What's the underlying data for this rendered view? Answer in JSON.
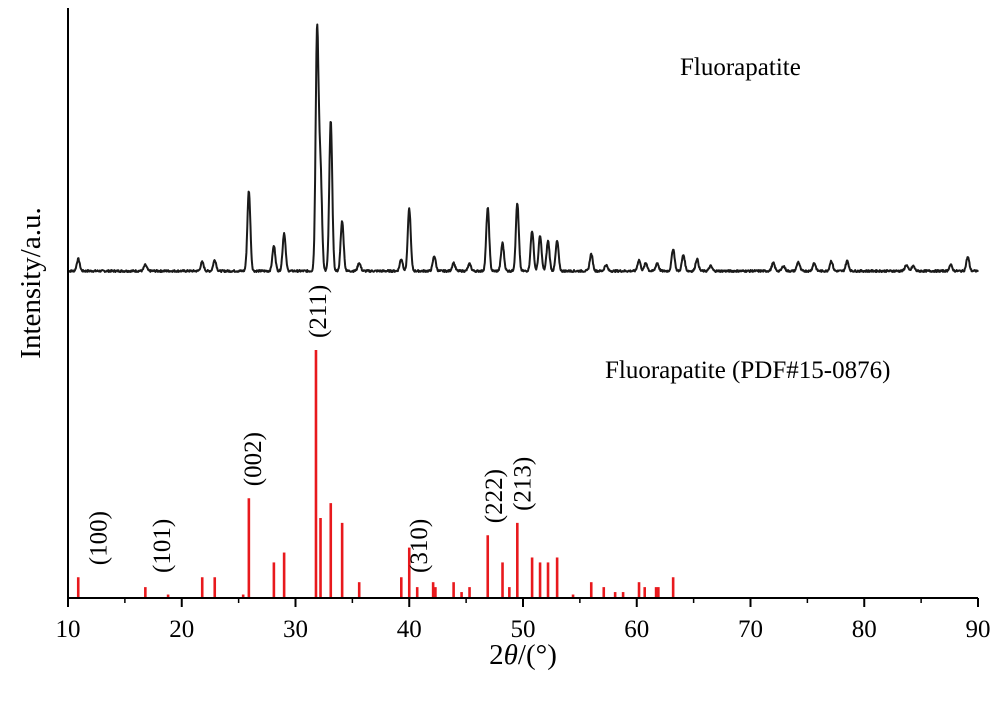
{
  "chart_data": {
    "type": "line",
    "xlabel_prefix": "2",
    "xlabel_symbol": "θ",
    "xlabel_suffix": "/(°)",
    "ylabel": "Intensity/a.u.",
    "xlim": [
      10,
      90
    ],
    "xticks": [
      10,
      20,
      30,
      40,
      50,
      60,
      70,
      80,
      90
    ],
    "yticks_shown": false,
    "grid": false,
    "colors": {
      "pattern": "#1a1a1a",
      "reference": "#e8191d",
      "axis": "#000000"
    },
    "series": [
      {
        "name": "Fluorapatite",
        "kind": "xrd-pattern",
        "baseline": 0,
        "noise": 2,
        "peaks": [
          {
            "x": 10.9,
            "h": 12
          },
          {
            "x": 16.8,
            "h": 6
          },
          {
            "x": 21.8,
            "h": 9
          },
          {
            "x": 22.9,
            "h": 11
          },
          {
            "x": 25.9,
            "h": 80
          },
          {
            "x": 28.1,
            "h": 25
          },
          {
            "x": 29.0,
            "h": 38
          },
          {
            "x": 31.9,
            "h": 240
          },
          {
            "x": 32.2,
            "h": 98
          },
          {
            "x": 33.1,
            "h": 150
          },
          {
            "x": 34.1,
            "h": 50
          },
          {
            "x": 35.6,
            "h": 8
          },
          {
            "x": 39.3,
            "h": 12
          },
          {
            "x": 40.0,
            "h": 62
          },
          {
            "x": 42.2,
            "h": 15
          },
          {
            "x": 43.9,
            "h": 8
          },
          {
            "x": 45.3,
            "h": 7
          },
          {
            "x": 46.9,
            "h": 63
          },
          {
            "x": 48.2,
            "h": 28
          },
          {
            "x": 49.5,
            "h": 68
          },
          {
            "x": 50.8,
            "h": 40
          },
          {
            "x": 51.5,
            "h": 35
          },
          {
            "x": 52.2,
            "h": 30
          },
          {
            "x": 53.0,
            "h": 30
          },
          {
            "x": 56.0,
            "h": 17
          },
          {
            "x": 57.3,
            "h": 6
          },
          {
            "x": 60.2,
            "h": 11
          },
          {
            "x": 60.8,
            "h": 8
          },
          {
            "x": 61.8,
            "h": 8
          },
          {
            "x": 63.2,
            "h": 22
          },
          {
            "x": 64.1,
            "h": 16
          },
          {
            "x": 65.3,
            "h": 12
          },
          {
            "x": 66.5,
            "h": 5
          },
          {
            "x": 72.0,
            "h": 8
          },
          {
            "x": 72.9,
            "h": 5
          },
          {
            "x": 74.2,
            "h": 9
          },
          {
            "x": 75.6,
            "h": 8
          },
          {
            "x": 77.1,
            "h": 10
          },
          {
            "x": 78.5,
            "h": 10
          },
          {
            "x": 83.7,
            "h": 6
          },
          {
            "x": 84.3,
            "h": 5
          },
          {
            "x": 87.6,
            "h": 6
          },
          {
            "x": 89.1,
            "h": 14
          }
        ]
      },
      {
        "name": "Fluorapatite (PDF#15-0876)",
        "kind": "stick-pattern",
        "x": [
          10.9,
          16.8,
          18.8,
          21.8,
          22.9,
          25.4,
          25.9,
          28.1,
          29.0,
          31.8,
          32.2,
          33.1,
          34.1,
          35.6,
          39.3,
          40.0,
          40.7,
          42.1,
          42.3,
          43.9,
          44.6,
          45.3,
          46.9,
          48.2,
          48.8,
          49.5,
          50.8,
          51.5,
          52.2,
          53.0,
          54.4,
          56.0,
          57.1,
          58.1,
          58.8,
          60.2,
          60.7,
          61.7,
          61.9,
          63.2
        ],
        "y": [
          8,
          4,
          1,
          8,
          8,
          1,
          40,
          14,
          18,
          100,
          32,
          38,
          30,
          6,
          8,
          20,
          4,
          6,
          4,
          6,
          2,
          4,
          25,
          14,
          4,
          30,
          16,
          14,
          14,
          16,
          1,
          6,
          4,
          2,
          2,
          6,
          4,
          4,
          4,
          8
        ]
      }
    ],
    "annotations": [
      {
        "label": "(100)",
        "x": 12.6,
        "series": "reference"
      },
      {
        "label": "(101)",
        "x": 18.2,
        "series": "reference"
      },
      {
        "label": "(002)",
        "x": 26.2,
        "series": "reference"
      },
      {
        "label": "(211)",
        "x": 31.9,
        "series": "reference"
      },
      {
        "label": "(310)",
        "x": 40.8,
        "series": "reference"
      },
      {
        "label": "(222)",
        "x": 47.4,
        "series": "reference"
      },
      {
        "label": "(213)",
        "x": 49.9,
        "series": "reference"
      }
    ]
  }
}
